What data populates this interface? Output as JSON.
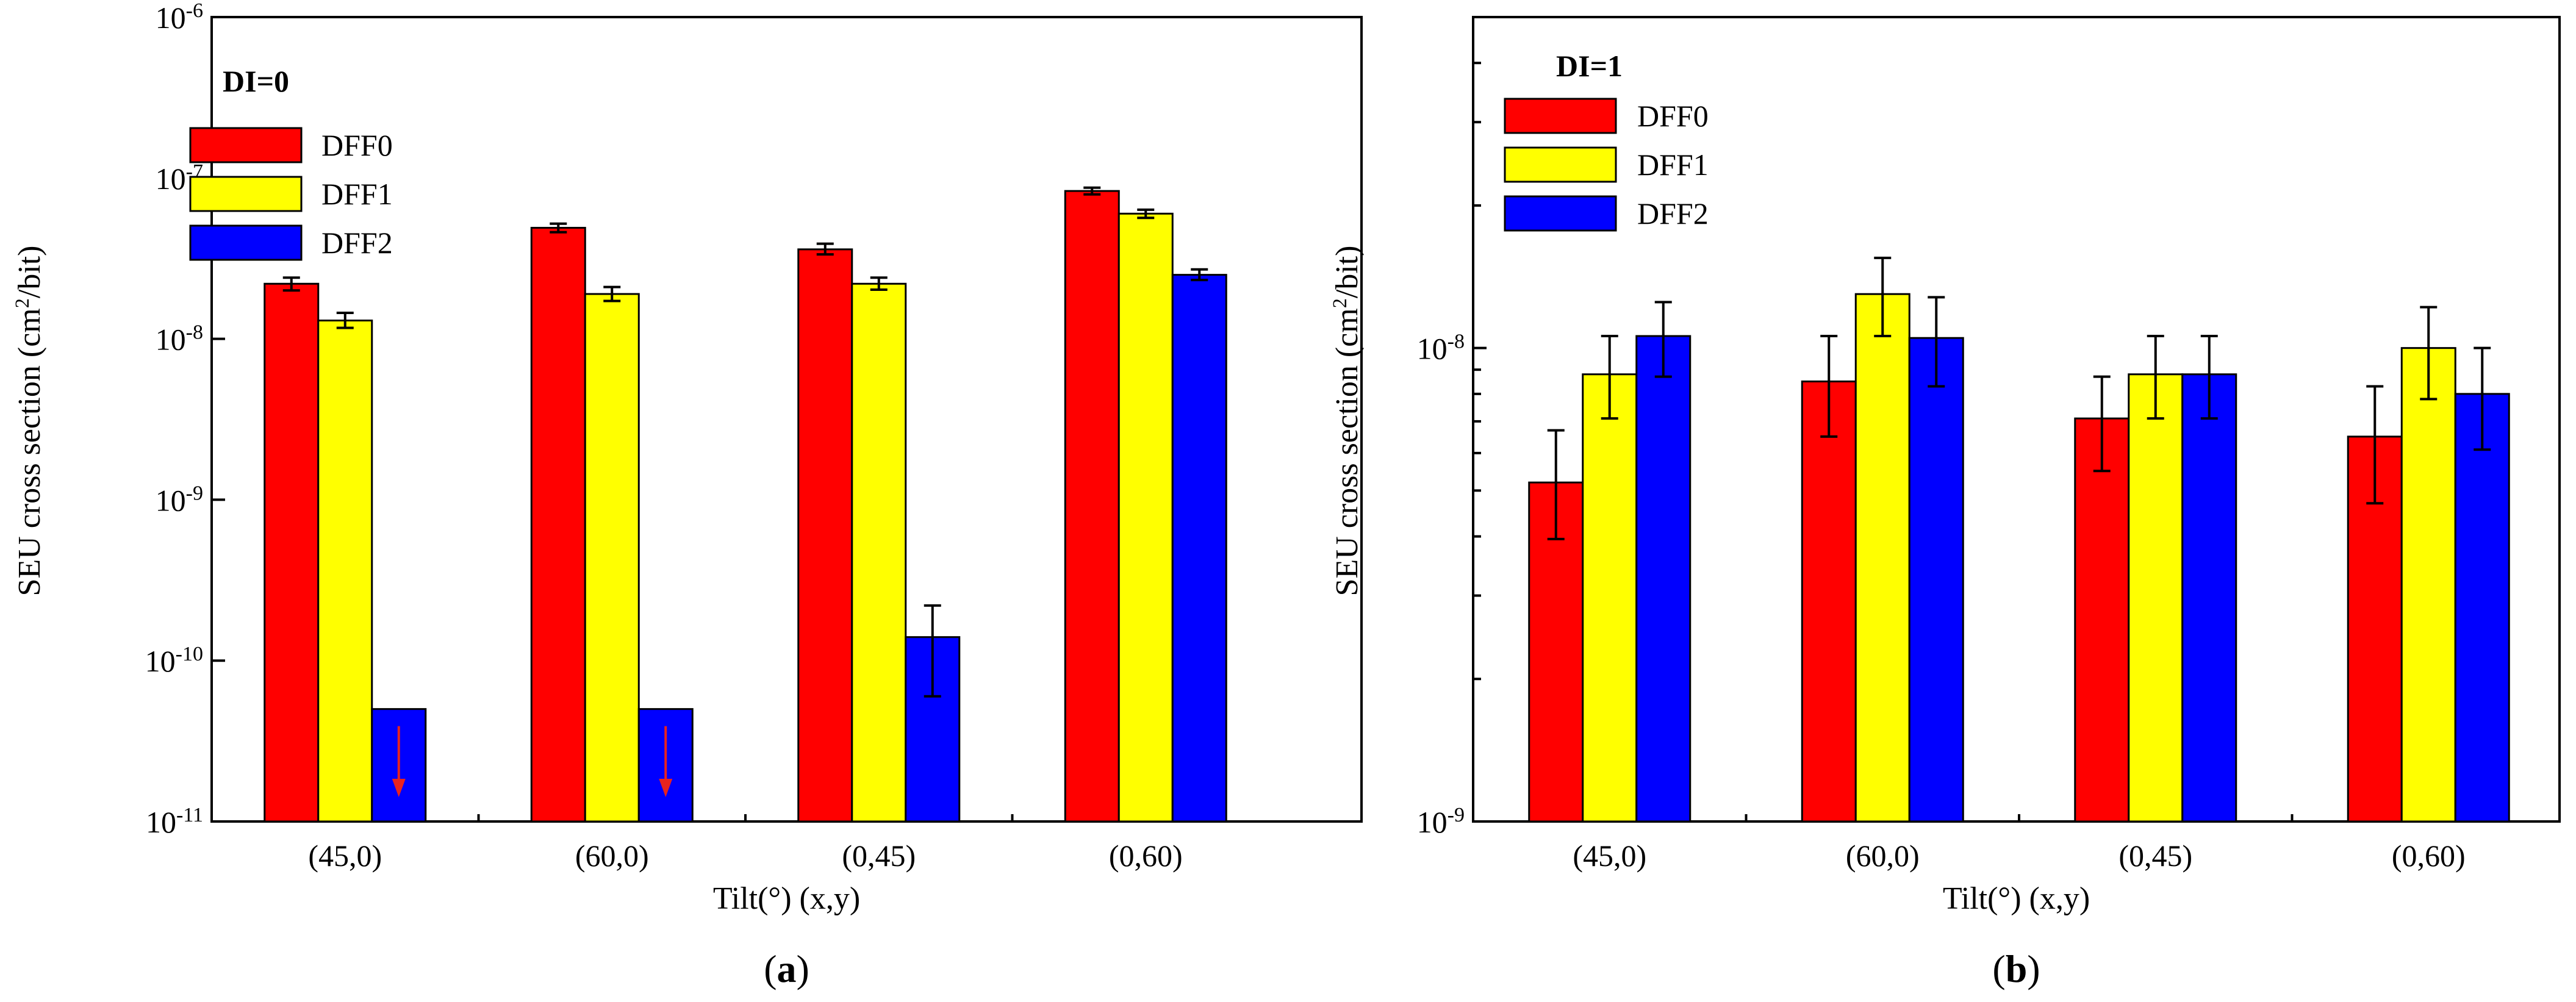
{
  "colors": {
    "DFF0": "#ff0000",
    "DFF1": "#ffff00",
    "DFF2": "#0000ff",
    "arrow": "#e8231f"
  },
  "chart_data": [
    {
      "panel_label": "a",
      "type": "bar",
      "scale": "log",
      "legend_title": "DI=0",
      "legend_position": "top-left",
      "xlabel": "Tilt(°) (x,y)",
      "ylabel": "SEU cross section (cm²/bit)",
      "ylim": [
        1e-11,
        1e-06
      ],
      "y_ticks": [
        {
          "value": 1e-11,
          "base": "10",
          "exp": "-11"
        },
        {
          "value": 1e-10,
          "base": "10",
          "exp": "-10"
        },
        {
          "value": 1e-09,
          "base": "10",
          "exp": "-9"
        },
        {
          "value": 1e-08,
          "base": "10",
          "exp": "-8"
        },
        {
          "value": 1e-07,
          "base": "10",
          "exp": "-7"
        },
        {
          "value": 1e-06,
          "base": "10",
          "exp": "-6"
        }
      ],
      "categories": [
        "(45,0)",
        "(60,0)",
        "(0,45)",
        "(0,60)"
      ],
      "series": [
        {
          "name": "DFF0",
          "values": [
            2.2e-08,
            4.9e-08,
            3.6e-08,
            8.3e-08
          ],
          "err_low": [
            2e-08,
            4.6e-08,
            3.35e-08,
            7.9e-08
          ],
          "err_high": [
            2.4e-08,
            5.2e-08,
            3.9e-08,
            8.7e-08
          ]
        },
        {
          "name": "DFF1",
          "values": [
            1.3e-08,
            1.9e-08,
            2.2e-08,
            6e-08
          ],
          "err_low": [
            1.17e-08,
            1.72e-08,
            2.02e-08,
            5.65e-08
          ],
          "err_high": [
            1.45e-08,
            2.1e-08,
            2.4e-08,
            6.35e-08
          ]
        },
        {
          "name": "DFF2",
          "values": [
            5e-11,
            5e-11,
            1.4e-10,
            2.5e-08
          ],
          "err_low": [
            null,
            null,
            6e-11,
            2.32e-08
          ],
          "err_high": [
            null,
            null,
            2.2e-10,
            2.7e-08
          ],
          "upper_limit": [
            true,
            true,
            false,
            false
          ]
        }
      ]
    },
    {
      "panel_label": "b",
      "type": "bar",
      "scale": "log",
      "legend_title": "DI=1",
      "legend_position": "top-left",
      "xlabel": "Tilt(°) (x,y)",
      "ylabel": "SEU cross section (cm²/bit)",
      "ylim": [
        1e-09,
        5e-08
      ],
      "y_ticks": [
        {
          "value": 1e-09,
          "base": "10",
          "exp": "-9"
        },
        {
          "value": 1e-08,
          "base": "10",
          "exp": "-8"
        }
      ],
      "minor_ticks": [
        2e-09,
        3e-09,
        4e-09,
        5e-09,
        6e-09,
        7e-09,
        8e-09,
        9e-09,
        2e-08,
        3e-08,
        4e-08
      ],
      "categories": [
        "(45,0)",
        "(60,0)",
        "(0,45)",
        "(0,60)"
      ],
      "series": [
        {
          "name": "DFF0",
          "values": [
            5.2e-09,
            8.5e-09,
            7.1e-09,
            6.5e-09
          ],
          "err_low": [
            3.95e-09,
            6.5e-09,
            5.5e-09,
            4.7e-09
          ],
          "err_high": [
            6.7e-09,
            1.06e-08,
            8.7e-09,
            8.3e-09
          ]
        },
        {
          "name": "DFF1",
          "values": [
            8.8e-09,
            1.3e-08,
            8.8e-09,
            1e-08
          ],
          "err_low": [
            7.1e-09,
            1.06e-08,
            7.1e-09,
            7.8e-09
          ],
          "err_high": [
            1.06e-08,
            1.55e-08,
            1.06e-08,
            1.22e-08
          ]
        },
        {
          "name": "DFF2",
          "values": [
            1.06e-08,
            1.05e-08,
            8.8e-09,
            8e-09
          ],
          "err_low": [
            8.7e-09,
            8.3e-09,
            7.1e-09,
            6.1e-09
          ],
          "err_high": [
            1.25e-08,
            1.28e-08,
            1.06e-08,
            1e-08
          ]
        }
      ]
    }
  ]
}
